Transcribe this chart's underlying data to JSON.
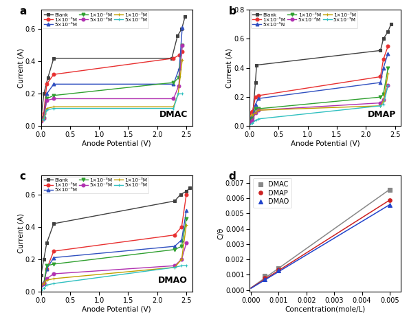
{
  "panels": [
    "a",
    "b",
    "c",
    "d"
  ],
  "titles": [
    "DMAC",
    "DMAP",
    "DMAO",
    ""
  ],
  "xlabel_pol": "Anode Potential (V)",
  "ylabel_pol": "Current (A)",
  "xlabel_lang": "Concentration(mole/L)",
  "ylabel_lang": "C/θ",
  "legend_labels": [
    "Blank",
    "1×10⁻⁵M",
    "5×10⁻⁵M",
    "1×10⁻⁴M",
    "5×10⁻⁴M",
    "1×10⁻³M",
    "5×10⁻³M"
  ],
  "legend_labels_b": [
    "Blank",
    "1×10⁻⁵M",
    "5×10⁻⁵N",
    "1×10⁻⁴M",
    "5×10⁻⁴M",
    "1×10⁻³M",
    "5×10⁻³M"
  ],
  "colors": [
    "#404040",
    "#e83030",
    "#3050c0",
    "#30a030",
    "#b030b0",
    "#c0a000",
    "#30c0c0"
  ],
  "markers": [
    "s",
    "o",
    "^",
    "v",
    "o",
    "+",
    "+"
  ],
  "pol_xlim": [
    0,
    2.6
  ],
  "pol_ylim_a": [
    0.0,
    0.72
  ],
  "pol_ylim_b": [
    0.0,
    0.8
  ],
  "pol_ylim_c": [
    0.0,
    0.72
  ],
  "curves_a": {
    "blank": {
      "x": [
        0.0,
        0.05,
        0.12,
        0.22,
        2.25,
        2.35,
        2.42,
        2.48
      ],
      "y": [
        0.04,
        0.2,
        0.3,
        0.42,
        0.42,
        0.56,
        0.6,
        0.68
      ]
    },
    "1e-5": {
      "x": [
        0.0,
        0.05,
        0.1,
        0.22,
        2.28,
        2.38,
        2.43
      ],
      "y": [
        0.04,
        0.08,
        0.26,
        0.32,
        0.42,
        0.44,
        0.46
      ]
    },
    "5e-5": {
      "x": [
        0.0,
        0.05,
        0.1,
        0.22,
        2.28,
        2.38,
        2.43
      ],
      "y": [
        0.05,
        0.06,
        0.2,
        0.26,
        0.26,
        0.36,
        0.61
      ]
    },
    "1e-4": {
      "x": [
        0.0,
        0.05,
        0.1,
        0.22,
        2.28,
        2.37,
        2.43
      ],
      "y": [
        0.03,
        0.05,
        0.17,
        0.19,
        0.27,
        0.3,
        0.5
      ]
    },
    "5e-4": {
      "x": [
        0.0,
        0.05,
        0.1,
        0.22,
        2.28,
        2.37,
        2.43
      ],
      "y": [
        0.03,
        0.05,
        0.16,
        0.17,
        0.17,
        0.25,
        0.5
      ]
    },
    "1e-3": {
      "x": [
        0.0,
        0.05,
        0.1,
        0.22,
        2.28,
        2.36,
        2.43
      ],
      "y": [
        0.03,
        0.05,
        0.11,
        0.12,
        0.12,
        0.2,
        0.41
      ]
    },
    "5e-3": {
      "x": [
        0.0,
        0.05,
        0.1,
        0.22,
        2.28,
        2.36,
        2.43
      ],
      "y": [
        0.04,
        0.04,
        0.1,
        0.11,
        0.11,
        0.2,
        0.2
      ]
    }
  },
  "curves_b": {
    "blank": {
      "x": [
        0.0,
        0.05,
        0.1,
        0.12,
        2.25,
        2.3,
        2.38,
        2.43
      ],
      "y": [
        0.05,
        0.06,
        0.3,
        0.42,
        0.52,
        0.6,
        0.65,
        0.7
      ]
    },
    "1e-5": {
      "x": [
        0.0,
        0.05,
        0.1,
        0.15,
        2.25,
        2.3,
        2.38
      ],
      "y": [
        0.09,
        0.1,
        0.2,
        0.21,
        0.34,
        0.46,
        0.55
      ]
    },
    "5e-5": {
      "x": [
        0.0,
        0.05,
        0.1,
        0.15,
        2.25,
        2.3,
        2.38
      ],
      "y": [
        0.06,
        0.07,
        0.15,
        0.19,
        0.3,
        0.4,
        0.5
      ]
    },
    "1e-4": {
      "x": [
        0.0,
        0.05,
        0.1,
        0.15,
        2.25,
        2.3,
        2.38
      ],
      "y": [
        0.04,
        0.05,
        0.12,
        0.12,
        0.2,
        0.22,
        0.4
      ]
    },
    "5e-4": {
      "x": [
        0.0,
        0.05,
        0.1,
        0.15,
        2.25,
        2.3,
        2.38
      ],
      "y": [
        0.03,
        0.04,
        0.09,
        0.11,
        0.16,
        0.18,
        0.28
      ]
    },
    "1e-3": {
      "x": [
        0.0,
        0.05,
        0.1,
        0.15,
        2.25,
        2.3,
        2.38
      ],
      "y": [
        0.07,
        0.08,
        0.09,
        0.11,
        0.14,
        0.17,
        0.36
      ]
    },
    "5e-3": {
      "x": [
        0.0,
        0.05,
        0.1,
        0.15,
        2.25,
        2.3,
        2.38
      ],
      "y": [
        0.01,
        0.02,
        0.04,
        0.05,
        0.14,
        0.15,
        0.28
      ]
    }
  },
  "curves_c": {
    "blank": {
      "x": [
        0.0,
        0.05,
        0.1,
        0.22,
        2.3,
        2.4,
        2.5,
        2.56
      ],
      "y": [
        0.1,
        0.2,
        0.3,
        0.42,
        0.56,
        0.6,
        0.62,
        0.64
      ]
    },
    "1e-5": {
      "x": [
        0.0,
        0.05,
        0.1,
        0.22,
        2.3,
        2.42,
        2.5
      ],
      "y": [
        0.04,
        0.05,
        0.14,
        0.25,
        0.35,
        0.4,
        0.6
      ]
    },
    "5e-5": {
      "x": [
        0.0,
        0.05,
        0.1,
        0.22,
        2.3,
        2.42,
        2.5
      ],
      "y": [
        0.04,
        0.05,
        0.14,
        0.21,
        0.28,
        0.32,
        0.5
      ]
    },
    "1e-4": {
      "x": [
        0.0,
        0.05,
        0.1,
        0.22,
        2.3,
        2.42,
        2.5
      ],
      "y": [
        0.04,
        0.05,
        0.16,
        0.17,
        0.26,
        0.28,
        0.45
      ]
    },
    "5e-4": {
      "x": [
        0.0,
        0.05,
        0.1,
        0.22,
        2.3,
        2.42,
        2.5
      ],
      "y": [
        0.04,
        0.05,
        0.08,
        0.11,
        0.16,
        0.2,
        0.3
      ]
    },
    "1e-3": {
      "x": [
        0.0,
        0.05,
        0.1,
        0.22,
        2.3,
        2.42,
        2.5
      ],
      "y": [
        0.04,
        0.05,
        0.07,
        0.08,
        0.15,
        0.2,
        0.41
      ]
    },
    "5e-3": {
      "x": [
        0.0,
        0.05,
        0.1,
        0.22,
        2.3,
        2.42,
        2.5
      ],
      "y": [
        0.01,
        0.02,
        0.04,
        0.05,
        0.15,
        0.16,
        0.16
      ]
    }
  },
  "langmuir": {
    "DMAC": {
      "x": [
        0.0,
        0.0005,
        0.001,
        0.005
      ],
      "y": [
        0.0,
        0.00095,
        0.00143,
        0.00655
      ],
      "color": "#888888",
      "marker": "s",
      "label": "DMAC"
    },
    "DMAP": {
      "x": [
        0.0,
        0.0005,
        0.001,
        0.005
      ],
      "y": [
        0.0,
        0.0008,
        0.00135,
        0.00585
      ],
      "color": "#cc2222",
      "marker": "o",
      "label": "DMAP"
    },
    "DMAO": {
      "x": [
        0.0,
        0.0005,
        0.001,
        0.005
      ],
      "y": [
        0.0,
        0.00072,
        0.00128,
        0.00555
      ],
      "color": "#2244cc",
      "marker": "^",
      "label": "DMAO"
    }
  },
  "lang_xlim": [
    -5e-05,
    0.0054
  ],
  "lang_ylim": [
    -0.0001,
    0.0075
  ],
  "lang_xticks": [
    0.0,
    0.001,
    0.002,
    0.003,
    0.004,
    0.005
  ],
  "lang_yticks": [
    0.0,
    0.001,
    0.002,
    0.003,
    0.004,
    0.005,
    0.006,
    0.007
  ]
}
